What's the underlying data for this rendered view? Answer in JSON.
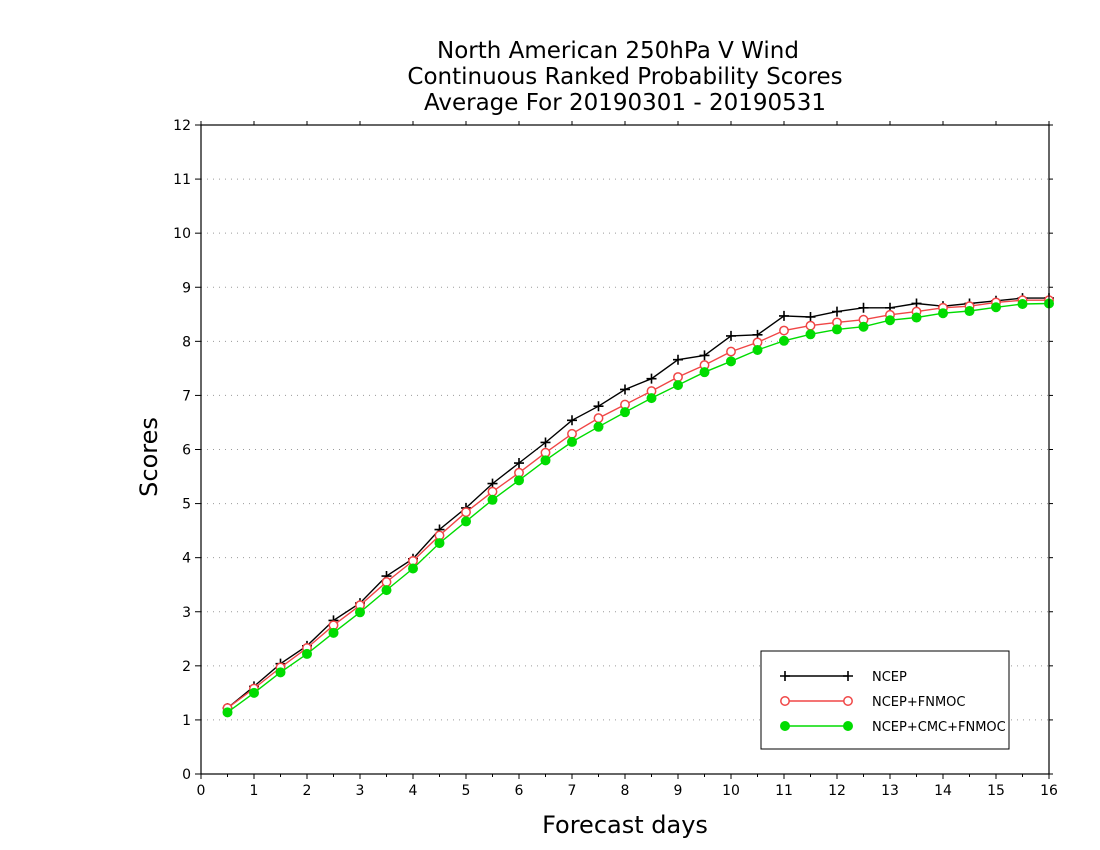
{
  "chart_data": {
    "type": "line",
    "title": [
      "North American 250hPa V Wind",
      "Continuous Ranked Probability Scores",
      "Average For 20190301 - 20190531"
    ],
    "xlabel": "Forecast days",
    "ylabel": "Scores",
    "xlim": [
      0,
      16
    ],
    "ylim": [
      0,
      12
    ],
    "xticks": [
      "0",
      "1",
      "2",
      "3",
      "4",
      "5",
      "6",
      "7",
      "8",
      "9",
      "10",
      "11",
      "12",
      "13",
      "14",
      "15",
      "16"
    ],
    "yticks": [
      "0",
      "1",
      "2",
      "3",
      "4",
      "5",
      "6",
      "7",
      "8",
      "9",
      "10",
      "11",
      "12"
    ],
    "grid": true,
    "legend_position": "bottom-right",
    "x": [
      0.5,
      1,
      1.5,
      2,
      2.5,
      3,
      3.5,
      4,
      4.5,
      5,
      5.5,
      6,
      6.5,
      7,
      7.5,
      8,
      8.5,
      9,
      9.5,
      10,
      10.5,
      11,
      11.5,
      12,
      12.5,
      13,
      13.5,
      14,
      14.5,
      15,
      15.5,
      16
    ],
    "series": [
      {
        "name": "NCEP",
        "color": "#000000",
        "marker": "plus",
        "values": [
          1.22,
          1.62,
          2.04,
          2.37,
          2.84,
          3.16,
          3.66,
          3.98,
          4.52,
          4.92,
          5.37,
          5.75,
          6.13,
          6.54,
          6.8,
          7.11,
          7.31,
          7.66,
          7.74,
          8.1,
          8.12,
          8.47,
          8.45,
          8.55,
          8.62,
          8.62,
          8.7,
          8.65,
          8.7,
          8.75,
          8.8,
          8.8
        ]
      },
      {
        "name": "NCEP+FNMOC",
        "color": "#f04646",
        "marker": "open-circle",
        "values": [
          1.22,
          1.58,
          1.97,
          2.33,
          2.75,
          3.12,
          3.55,
          3.94,
          4.41,
          4.84,
          5.22,
          5.57,
          5.94,
          6.29,
          6.58,
          6.83,
          7.08,
          7.34,
          7.56,
          7.81,
          7.98,
          8.2,
          8.29,
          8.35,
          8.4,
          8.49,
          8.55,
          8.62,
          8.65,
          8.72,
          8.76,
          8.76
        ]
      },
      {
        "name": "NCEP+CMC+FNMOC",
        "color": "#00dc00",
        "marker": "filled-circle",
        "values": [
          1.14,
          1.5,
          1.88,
          2.22,
          2.61,
          2.99,
          3.4,
          3.8,
          4.27,
          4.67,
          5.07,
          5.43,
          5.8,
          6.14,
          6.42,
          6.69,
          6.95,
          7.19,
          7.43,
          7.63,
          7.84,
          8.01,
          8.13,
          8.22,
          8.27,
          8.39,
          8.44,
          8.52,
          8.56,
          8.63,
          8.69,
          8.7
        ]
      }
    ]
  }
}
